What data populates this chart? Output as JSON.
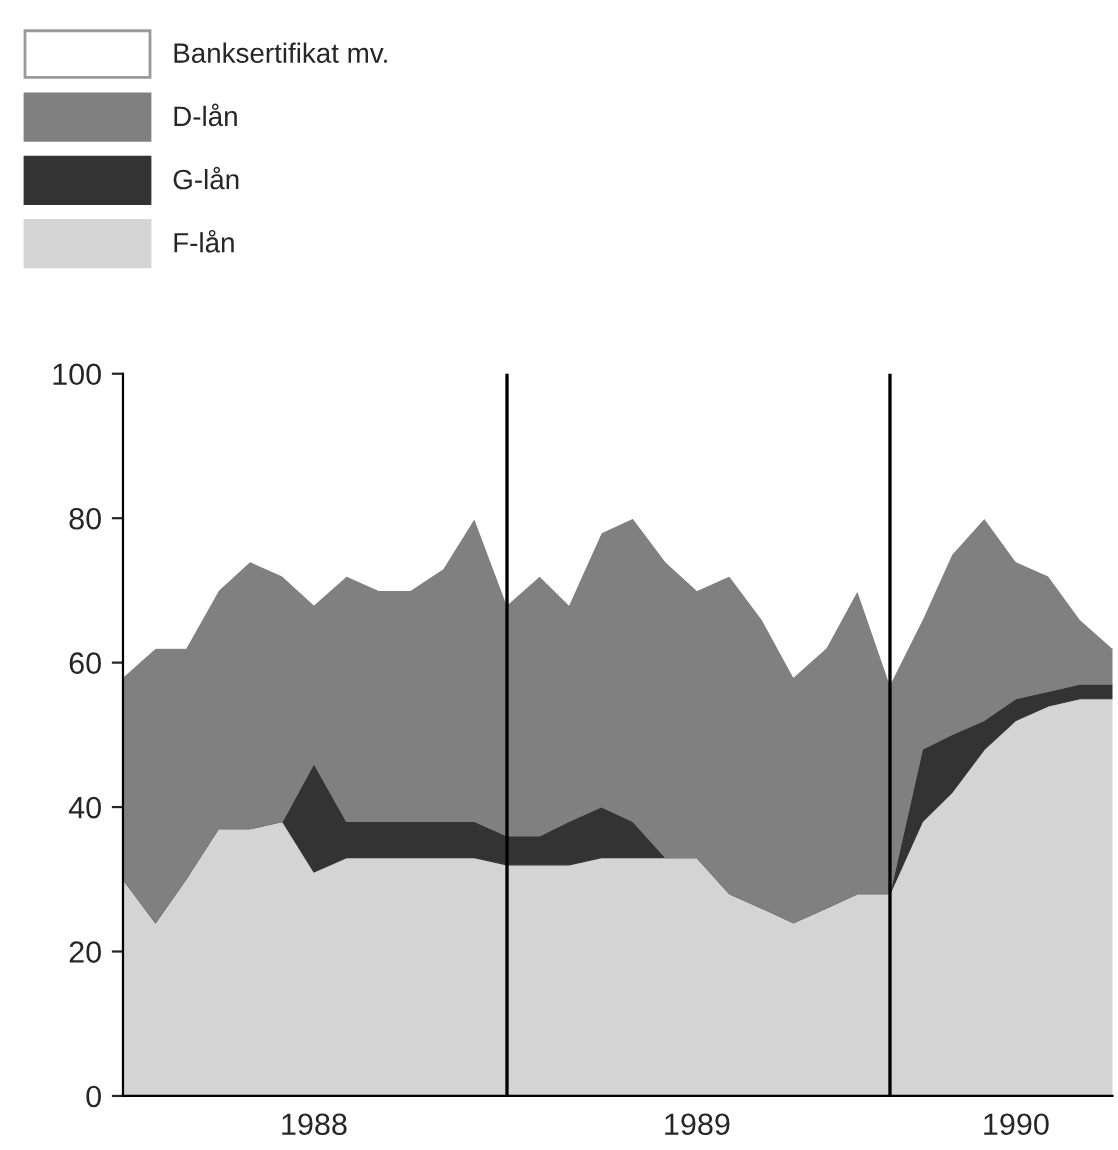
{
  "chart_data": {
    "type": "area",
    "stacked": true,
    "x": [
      "1988-01",
      "1988-02",
      "1988-03",
      "1988-04",
      "1988-05",
      "1988-06",
      "1988-07",
      "1988-08",
      "1988-09",
      "1988-10",
      "1988-11",
      "1988-12",
      "1989-01",
      "1989-02",
      "1989-03",
      "1989-04",
      "1989-05",
      "1989-06",
      "1989-07",
      "1989-08",
      "1989-09",
      "1989-10",
      "1989-11",
      "1989-12",
      "1990-01",
      "1990-02",
      "1990-03",
      "1990-04",
      "1990-05",
      "1990-06",
      "1990-07",
      "1990-08"
    ],
    "series": [
      {
        "name": "F-lån",
        "color": "#d4d4d4",
        "values": [
          30,
          24,
          30,
          37,
          37,
          38,
          31,
          33,
          33,
          33,
          33,
          33,
          32,
          32,
          32,
          33,
          33,
          33,
          33,
          28,
          26,
          24,
          26,
          28,
          28,
          38,
          42,
          48,
          52,
          54,
          55,
          55
        ]
      },
      {
        "name": "G-lån",
        "color": "#333333",
        "values": [
          0,
          0,
          0,
          0,
          0,
          0,
          15,
          5,
          5,
          5,
          5,
          5,
          4,
          4,
          6,
          7,
          5,
          0,
          0,
          0,
          0,
          0,
          0,
          0,
          0,
          10,
          8,
          4,
          3,
          2,
          2,
          2
        ]
      },
      {
        "name": "D-lån",
        "color": "#808080",
        "values": [
          28,
          38,
          32,
          33,
          37,
          34,
          22,
          34,
          32,
          32,
          35,
          42,
          32,
          36,
          30,
          38,
          42,
          41,
          37,
          44,
          40,
          34,
          36,
          42,
          29,
          18,
          25,
          28,
          19,
          16,
          9,
          5
        ]
      },
      {
        "name": "Banksertifikat mv.",
        "color": "#ffffff",
        "values": [
          42,
          38,
          38,
          30,
          26,
          28,
          32,
          28,
          30,
          30,
          27,
          20,
          32,
          28,
          32,
          22,
          20,
          26,
          30,
          28,
          34,
          42,
          38,
          30,
          43,
          34,
          25,
          20,
          26,
          28,
          34,
          38
        ]
      }
    ],
    "xlim": [
      "1988-01",
      "1990-08"
    ],
    "xticks": [
      {
        "value": "1988-07",
        "label": "1988"
      },
      {
        "value": "1989-07",
        "label": "1989"
      },
      {
        "value": "1990-05",
        "label": "1990"
      }
    ],
    "ylim": [
      0,
      100
    ],
    "yticks": [
      0,
      20,
      40,
      60,
      80,
      100
    ],
    "ref_lines": [
      {
        "axis": "x",
        "value": "1989-01",
        "label": null
      },
      {
        "axis": "x",
        "value": "1990-01",
        "label": null
      }
    ],
    "grid": false,
    "legend": "top left"
  }
}
